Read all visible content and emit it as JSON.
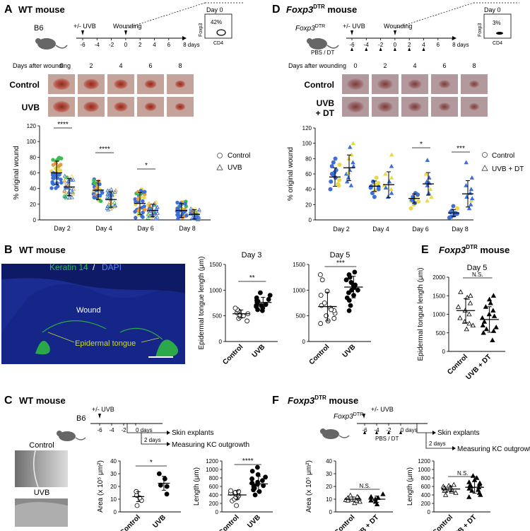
{
  "colors": {
    "blue": "#3c6fd8",
    "yellow": "#e8d94a",
    "orange": "#e89a3c",
    "green": "#3dbb55",
    "tick": "#000000",
    "keratin_green": "#22b14c",
    "dapi_blue": "#1f2f9e"
  },
  "panelA": {
    "letter": "A",
    "title": "WT mouse",
    "strain": "B6",
    "uvb_label": "+/- UVB",
    "wound_label": "Wounding",
    "timeline_ticks": [
      "-6",
      "-4",
      "-2",
      "0",
      "2",
      "4",
      "6",
      "8 days"
    ],
    "flow_title": "Day 0",
    "flow_pct": "42%",
    "flow_y": "Foxp3",
    "flow_x": "CD4",
    "days_header": "Days after wounding",
    "days": [
      "0",
      "2",
      "4",
      "6",
      "8"
    ],
    "row_labels": [
      "Control",
      "UVB"
    ],
    "legend": [
      "Control",
      "UVB"
    ]
  },
  "panelD": {
    "letter": "D",
    "title_prefix": "Foxp3",
    "title_sup": "DTR",
    "title_suffix": " mouse",
    "strain_prefix": "Foxp3",
    "strain_sup": "DTR",
    "uvb_label": "+/- UVB",
    "wound_label": "Wounding",
    "pbs_label": "PBS / DT",
    "timeline_ticks": [
      "-6",
      "-4",
      "-2",
      "0",
      "2",
      "4",
      "6",
      "8 days"
    ],
    "flow_title": "Day 0",
    "flow_pct": "3%",
    "flow_y": "Foxp3",
    "flow_x": "CD4",
    "days_header": "Days after wounding",
    "days": [
      "0",
      "2",
      "4",
      "6",
      "8"
    ],
    "row_labels": [
      "Control",
      "UVB\n+ DT"
    ],
    "legend": [
      "Control",
      "UVB + DT"
    ]
  },
  "panelB": {
    "letter": "B",
    "title": "WT mouse",
    "stain_green": "Keratin 14",
    "stain_sep": " / ",
    "stain_blue": "DAPI",
    "wound_label": "Wound",
    "tongue_label": "Epidermal tongue"
  },
  "panelE": {
    "letter": "E",
    "title_prefix": "Foxp3",
    "title_sup": "DTR",
    "title_suffix": " mouse"
  },
  "panelC": {
    "letter": "C",
    "title": "WT mouse",
    "strain": "B6",
    "uvb_label": "+/- UVB",
    "timeline_ticks": [
      "-6",
      "-4",
      "-2",
      "0 days"
    ],
    "explant_label": "Skin explants",
    "days2_label": "2 days",
    "measure_label": "Measuring KC outgrowth",
    "image_labels": [
      "Control",
      "UVB"
    ]
  },
  "panelF": {
    "letter": "F",
    "title_prefix": "Foxp3",
    "title_sup": "DTR",
    "title_suffix": " mouse",
    "strain_prefix": "Foxp3",
    "strain_sup": "DTR",
    "uvb_label": "+/- UVB",
    "timeline_ticks": [
      "-6",
      "-4",
      "-2",
      "0 days"
    ],
    "pbs_label": "PBS / DT",
    "explant_label": "Skin explants",
    "days2_label": "2 days",
    "measure_label": "Measuring KC outgrowth"
  },
  "chart_data": [
    {
      "id": "A_wound",
      "type": "scatter",
      "ylabel": "% original wound",
      "ylim": [
        0,
        120
      ],
      "yticks": [
        0,
        20,
        40,
        60,
        80,
        100,
        120
      ],
      "categories": [
        "Day 2",
        "Day 4",
        "Day 6",
        "Day 8"
      ],
      "series": [
        {
          "name": "Control",
          "marker": "circle",
          "means": [
            60,
            38,
            21,
            12
          ],
          "sd": [
            15,
            12,
            14,
            9
          ]
        },
        {
          "name": "UVB",
          "marker": "triangle",
          "means": [
            42,
            26,
            12,
            7
          ],
          "sd": [
            11,
            10,
            8,
            6
          ]
        }
      ],
      "significance": [
        {
          "category": "Day 2",
          "label": "****"
        },
        {
          "category": "Day 4",
          "label": "****"
        },
        {
          "category": "Day 6",
          "label": "*"
        }
      ]
    },
    {
      "id": "D_wound",
      "type": "scatter",
      "ylabel": "% original wound",
      "ylim": [
        0,
        120
      ],
      "yticks": [
        0,
        20,
        40,
        60,
        80,
        100,
        120
      ],
      "categories": [
        "Day 2",
        "Day 4",
        "Day 6",
        "Day 8"
      ],
      "series": [
        {
          "name": "Control",
          "marker": "circle",
          "values": [
            [
              40,
              45,
              50,
              55,
              58,
              62,
              65,
              70,
              75,
              80,
              52,
              47,
              60,
              72
            ],
            [
              30,
              35,
              40,
              42,
              44,
              46,
              48,
              50,
              38,
              55,
              43
            ],
            [
              15,
              20,
              22,
              25,
              28,
              30,
              32,
              35,
              26,
              33,
              24
            ],
            [
              3,
              5,
              8,
              10,
              12,
              15,
              18,
              6,
              9,
              4
            ]
          ]
        },
        {
          "name": "UVB + DT",
          "marker": "triangle",
          "values": [
            [
              45,
              50,
              55,
              60,
              65,
              70,
              75,
              80,
              85,
              95,
              100,
              62
            ],
            [
              30,
              35,
              40,
              45,
              50,
              55,
              60,
              70,
              85,
              42
            ],
            [
              25,
              30,
              35,
              40,
              45,
              50,
              55,
              60,
              78,
              48
            ],
            [
              15,
              20,
              25,
              30,
              35,
              40,
              45,
              55,
              75,
              28
            ]
          ]
        }
      ],
      "means": [
        [
          56,
          44,
          28,
          9
        ],
        [
          68,
          46,
          47,
          34
        ]
      ],
      "significance": [
        {
          "category": "Day 6",
          "label": "*"
        },
        {
          "category": "Day 8",
          "label": "***"
        }
      ]
    },
    {
      "id": "B_day3",
      "type": "scatter",
      "title": "Day 3",
      "ylabel": "Epidermal tongue length (μm)",
      "ylim": [
        0,
        1500
      ],
      "yticks": [
        0,
        500,
        1000,
        1500
      ],
      "categories": [
        "Control",
        "UVB"
      ],
      "values": [
        [
          400,
          450,
          480,
          500,
          520,
          540,
          560,
          600,
          620,
          650
        ],
        [
          600,
          620,
          650,
          680,
          700,
          720,
          750,
          780,
          800,
          820,
          850,
          900,
          950,
          700
        ]
      ],
      "means": [
        540,
        760
      ],
      "significance": [
        {
          "label": "**"
        }
      ]
    },
    {
      "id": "B_day5",
      "type": "scatter",
      "title": "Day 5",
      "ylim": [
        0,
        1500
      ],
      "yticks": [
        0,
        500,
        1000,
        1500
      ],
      "categories": [
        "Control",
        "UVB"
      ],
      "values": [
        [
          350,
          400,
          450,
          500,
          550,
          600,
          650,
          700,
          750,
          900,
          1200,
          1300,
          980,
          620
        ],
        [
          600,
          700,
          800,
          850,
          900,
          950,
          1000,
          1050,
          1100,
          1150,
          1200,
          1250,
          1300,
          1350,
          1000,
          1100
        ]
      ],
      "means": [
        680,
        1060
      ],
      "significance": [
        {
          "label": "***"
        }
      ]
    },
    {
      "id": "E_day5",
      "type": "scatter",
      "title": "Day 5",
      "ylabel": "Epidermal tongue length (μm)",
      "ylim": [
        0,
        2000
      ],
      "yticks": [
        0,
        500,
        1000,
        1500,
        2000
      ],
      "categories": [
        "Control",
        "UVB + DT"
      ],
      "values": [
        [
          600,
          700,
          800,
          900,
          1000,
          1100,
          1300,
          1500,
          1600,
          1450,
          1200,
          750
        ],
        [
          300,
          500,
          600,
          700,
          800,
          900,
          1000,
          1100,
          1200,
          1300,
          1400,
          1500,
          650,
          950,
          550
        ]
      ],
      "means": [
        1100,
        860
      ],
      "significance": [
        {
          "label": "N.S."
        }
      ]
    },
    {
      "id": "C_area",
      "type": "scatter",
      "ylabel": "Area (x 10⁵ μm²)",
      "ylim": [
        0,
        40
      ],
      "yticks": [
        0,
        10,
        20,
        30,
        40
      ],
      "categories": [
        "Control",
        "UVB"
      ],
      "values": [
        [
          5,
          9,
          11,
          13,
          16
        ],
        [
          14,
          20,
          21,
          26,
          30
        ]
      ],
      "means": [
        12,
        22.5
      ],
      "significance": [
        {
          "label": "*"
        }
      ]
    },
    {
      "id": "C_length",
      "type": "scatter",
      "ylabel": "Length (μm)",
      "ylim": [
        0,
        1200
      ],
      "yticks": [
        0,
        200,
        400,
        600,
        800,
        1000,
        1200
      ],
      "categories": [
        "Control",
        "UVB"
      ],
      "values": [
        [
          150,
          260,
          300,
          330,
          350,
          380,
          400,
          420,
          440,
          460,
          480,
          500
        ],
        [
          400,
          480,
          520,
          560,
          600,
          650,
          700,
          740,
          780,
          820,
          880,
          960,
          1050,
          620,
          680
        ]
      ],
      "means": [
        400,
        660
      ],
      "significance": [
        {
          "label": "****"
        }
      ]
    },
    {
      "id": "F_area",
      "type": "scatter",
      "ylabel": "Area (x 10⁵ μm²)",
      "ylim": [
        0,
        40
      ],
      "yticks": [
        0,
        10,
        20,
        30,
        40
      ],
      "categories": [
        "Control",
        "UVB + DT"
      ],
      "values": [
        [
          7,
          8,
          9,
          9.5,
          10,
          10.5,
          11,
          11.5,
          12,
          13,
          9
        ],
        [
          6,
          8,
          9,
          10,
          11,
          12,
          14
        ]
      ],
      "means": [
        10,
        10
      ],
      "significance": [
        {
          "label": "N.S."
        }
      ]
    },
    {
      "id": "F_length",
      "type": "scatter",
      "ylabel": "Length (μm)",
      "ylim": [
        0,
        1200
      ],
      "yticks": [
        0,
        200,
        400,
        600,
        800,
        1000,
        1200
      ],
      "categories": [
        "Control",
        "UVB + DT"
      ],
      "values": [
        [
          400,
          450,
          480,
          500,
          520,
          540,
          560,
          580,
          600,
          620,
          640,
          500,
          530,
          560
        ],
        [
          350,
          400,
          450,
          500,
          550,
          600,
          650,
          700,
          750,
          800,
          850,
          520,
          580,
          620,
          680
        ]
      ],
      "means": [
        540,
        580
      ],
      "significance": [
        {
          "label": "N.S."
        }
      ]
    }
  ]
}
